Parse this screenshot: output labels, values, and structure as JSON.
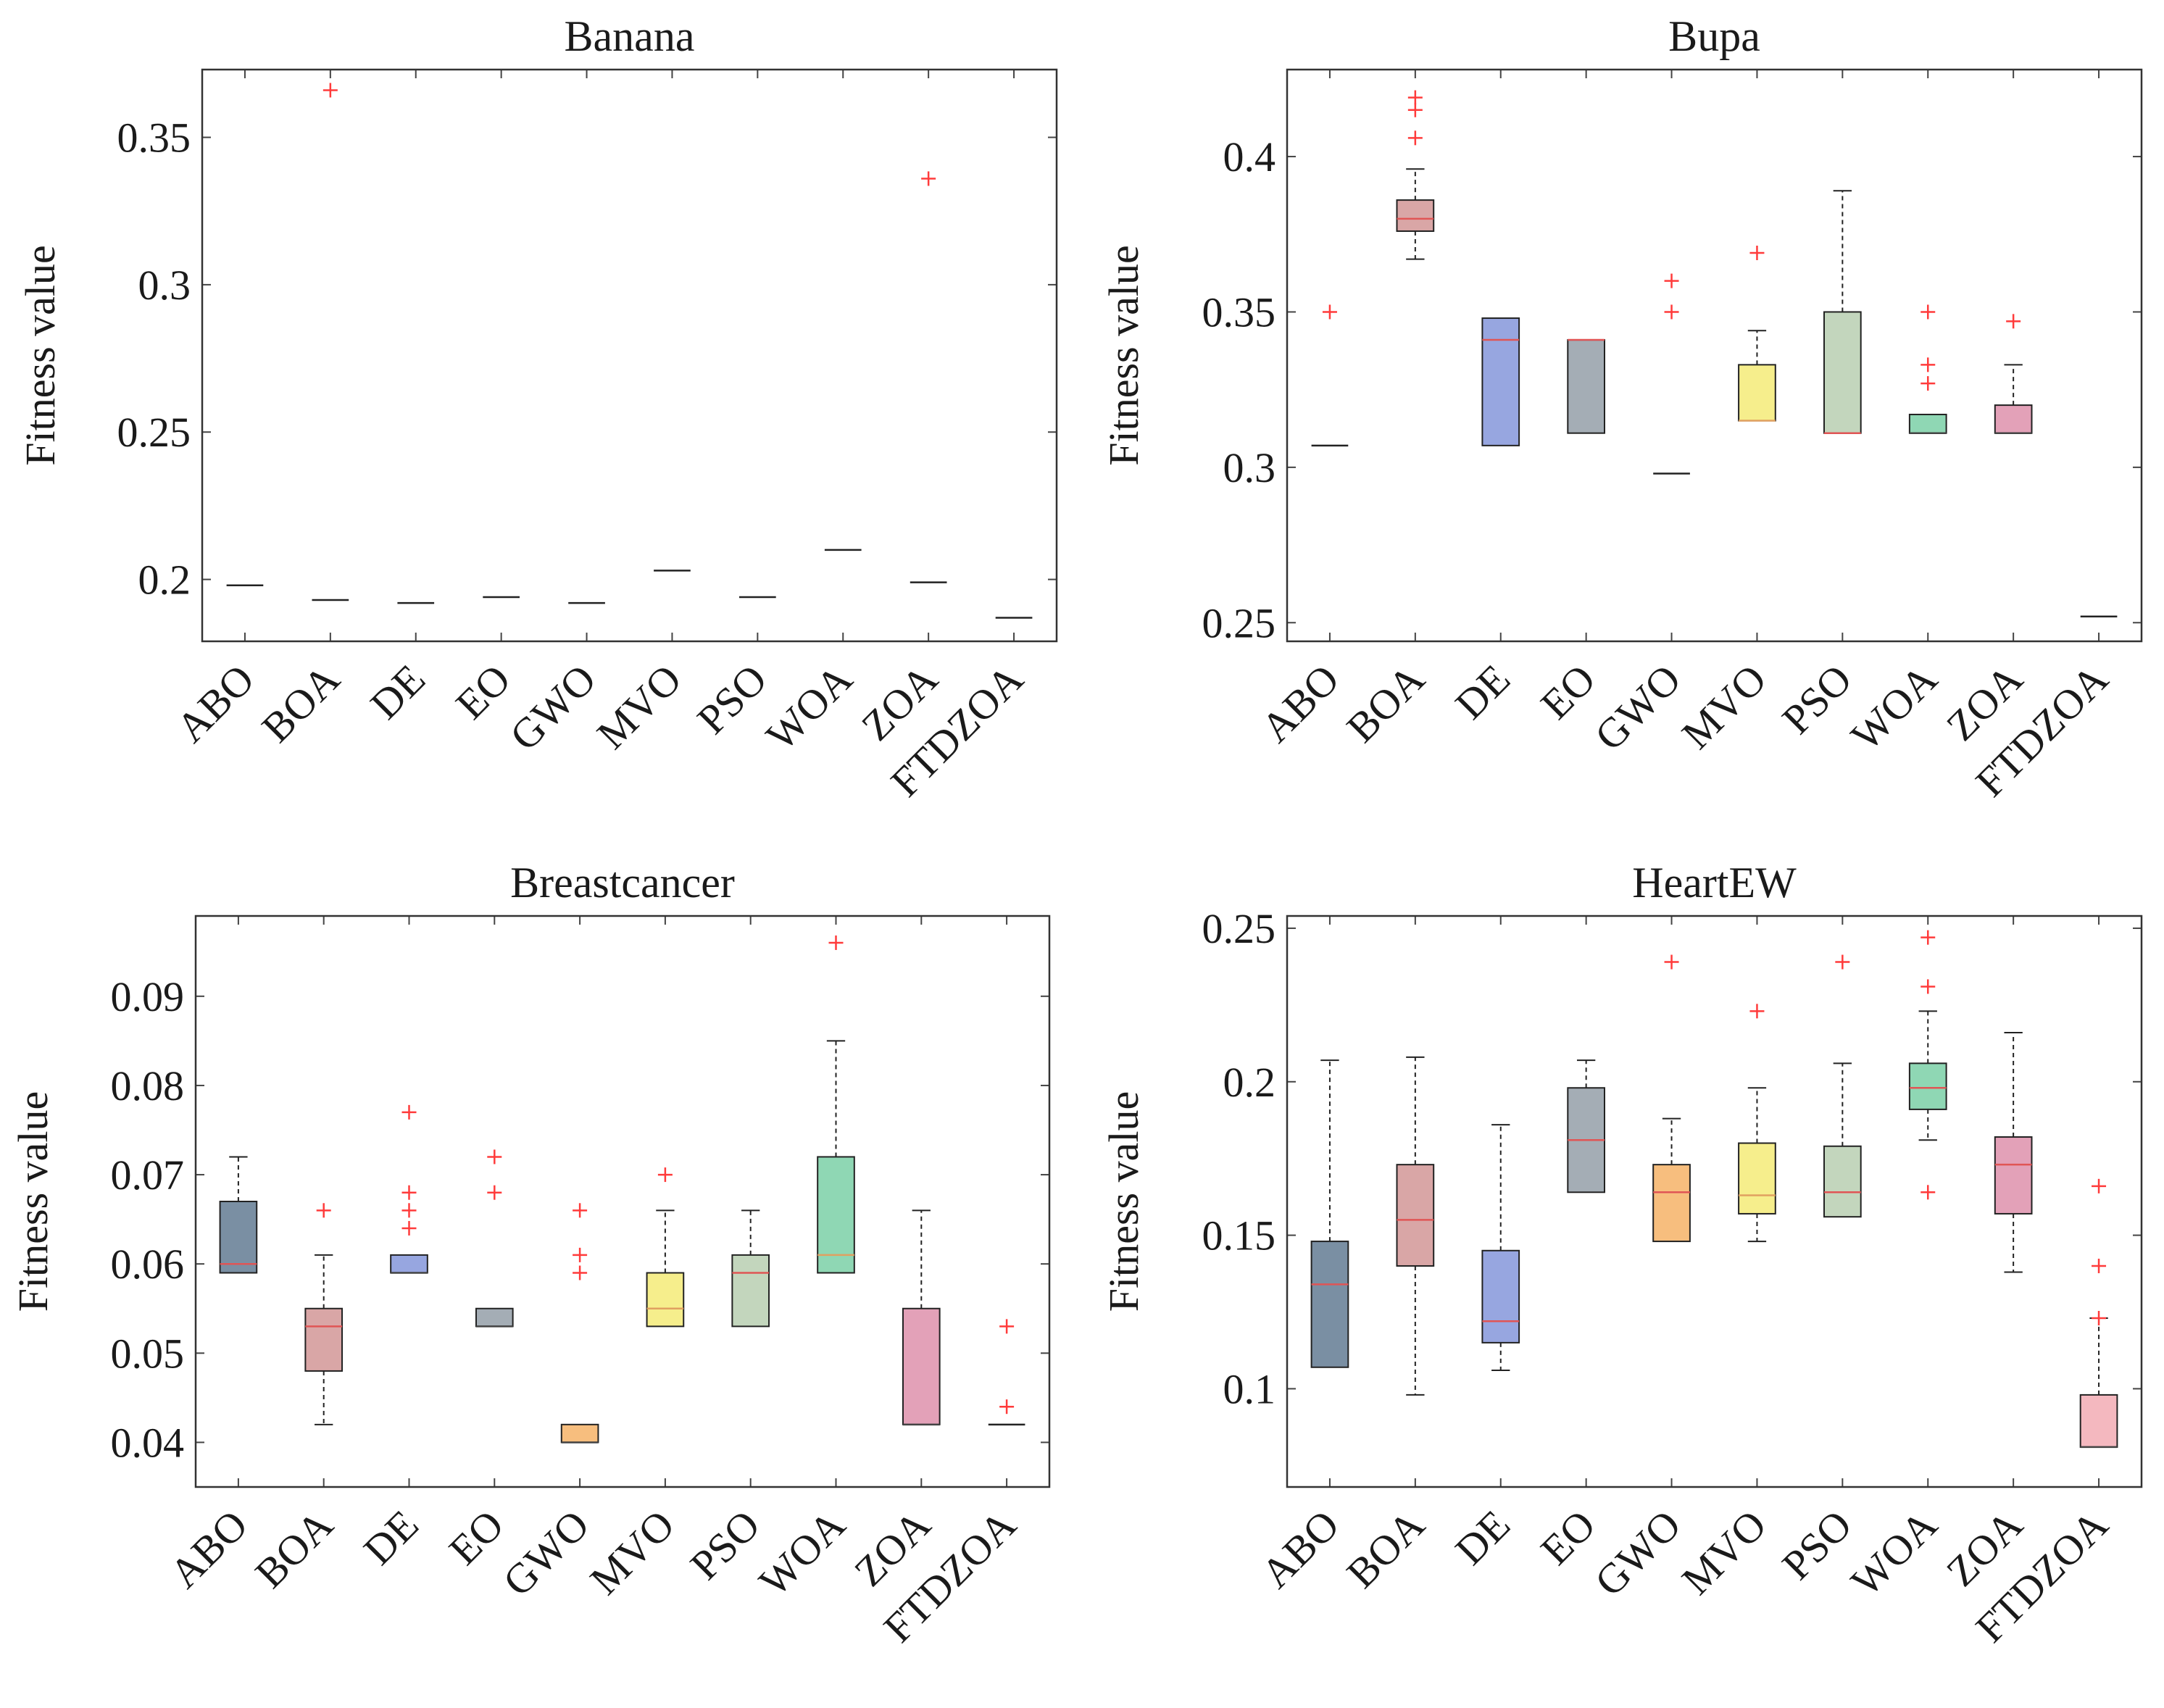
{
  "figure": {
    "ylabel": "Fitness value"
  },
  "chart_data": [
    {
      "type": "box",
      "title": "Banana",
      "ylabel": "Fitness value",
      "categories": [
        "ABO",
        "BOA",
        "DE",
        "EO",
        "GWO",
        "MVO",
        "PSO",
        "WOA",
        "ZOA",
        "FTDZOA"
      ],
      "ylim": [
        0.179,
        0.373
      ],
      "yticks": [
        0.2,
        0.25,
        0.3,
        0.35
      ],
      "ytick_labels": [
        "0.2",
        "0.25",
        "0.3",
        "0.35"
      ],
      "boxes": [
        {
          "category": "ABO",
          "q1": 0.198,
          "median": 0.198,
          "q3": 0.198,
          "whisker_low": 0.198,
          "whisker_high": 0.198,
          "outliers": [],
          "color": "#7a8fa3",
          "median_color": "#444444"
        },
        {
          "category": "BOA",
          "q1": 0.193,
          "median": 0.193,
          "q3": 0.193,
          "whisker_low": 0.193,
          "whisker_high": 0.193,
          "outliers": [
            0.366
          ],
          "color": "#d9a6a6",
          "median_color": "#444444"
        },
        {
          "category": "DE",
          "q1": 0.192,
          "median": 0.192,
          "q3": 0.192,
          "whisker_low": 0.192,
          "whisker_high": 0.192,
          "outliers": [],
          "color": "#97a6e0",
          "median_color": "#444444"
        },
        {
          "category": "EO",
          "q1": 0.194,
          "median": 0.194,
          "q3": 0.194,
          "whisker_low": 0.194,
          "whisker_high": 0.194,
          "outliers": [],
          "color": "#a4adb5",
          "median_color": "#444444"
        },
        {
          "category": "GWO",
          "q1": 0.192,
          "median": 0.192,
          "q3": 0.192,
          "whisker_low": 0.192,
          "whisker_high": 0.192,
          "outliers": [],
          "color": "#f7be7e",
          "median_color": "#444444"
        },
        {
          "category": "MVO",
          "q1": 0.203,
          "median": 0.203,
          "q3": 0.203,
          "whisker_low": 0.203,
          "whisker_high": 0.203,
          "outliers": [],
          "color": "#f6ee8c",
          "median_color": "#444444"
        },
        {
          "category": "PSO",
          "q1": 0.194,
          "median": 0.194,
          "q3": 0.194,
          "whisker_low": 0.194,
          "whisker_high": 0.194,
          "outliers": [],
          "color": "#c3d6bd",
          "median_color": "#444444"
        },
        {
          "category": "WOA",
          "q1": 0.21,
          "median": 0.21,
          "q3": 0.21,
          "whisker_low": 0.21,
          "whisker_high": 0.21,
          "outliers": [],
          "color": "#8fd7b4",
          "median_color": "#444444"
        },
        {
          "category": "ZOA",
          "q1": 0.199,
          "median": 0.199,
          "q3": 0.199,
          "whisker_low": 0.199,
          "whisker_high": 0.199,
          "outliers": [
            0.336
          ],
          "color": "#e3a1b8",
          "median_color": "#444444"
        },
        {
          "category": "FTDZOA",
          "q1": 0.187,
          "median": 0.187,
          "q3": 0.187,
          "whisker_low": 0.187,
          "whisker_high": 0.187,
          "outliers": [],
          "color": "#f4b8bf",
          "median_color": "#444444"
        }
      ]
    },
    {
      "type": "box",
      "title": "Bupa",
      "ylabel": "Fitness value",
      "categories": [
        "ABO",
        "BOA",
        "DE",
        "EO",
        "GWO",
        "MVO",
        "PSO",
        "WOA",
        "ZOA",
        "FTDZOA"
      ],
      "ylim": [
        0.244,
        0.428
      ],
      "yticks": [
        0.25,
        0.3,
        0.35,
        0.4
      ],
      "ytick_labels": [
        "0.25",
        "0.3",
        "0.35",
        "0.4"
      ],
      "boxes": [
        {
          "category": "ABO",
          "q1": 0.307,
          "median": 0.307,
          "q3": 0.307,
          "whisker_low": 0.307,
          "whisker_high": 0.307,
          "outliers": [
            0.35
          ],
          "color": "#7a8fa3",
          "median_color": "#444444"
        },
        {
          "category": "BOA",
          "q1": 0.376,
          "median": 0.38,
          "q3": 0.386,
          "whisker_low": 0.367,
          "whisker_high": 0.396,
          "outliers": [
            0.406,
            0.415,
            0.419
          ],
          "color": "#d9a6a6",
          "median_color": "#e05555"
        },
        {
          "category": "DE",
          "q1": 0.307,
          "median": 0.341,
          "q3": 0.348,
          "whisker_low": 0.307,
          "whisker_high": 0.348,
          "outliers": [],
          "color": "#97a6e0",
          "median_color": "#e05555"
        },
        {
          "category": "EO",
          "q1": 0.311,
          "median": 0.341,
          "q3": 0.341,
          "whisker_low": 0.311,
          "whisker_high": 0.341,
          "outliers": [],
          "color": "#a4adb5",
          "median_color": "#e05555"
        },
        {
          "category": "GWO",
          "q1": 0.298,
          "median": 0.298,
          "q3": 0.298,
          "whisker_low": 0.298,
          "whisker_high": 0.298,
          "outliers": [
            0.35,
            0.36
          ],
          "color": "#f7be7e",
          "median_color": "#444444"
        },
        {
          "category": "MVO",
          "q1": 0.315,
          "median": 0.315,
          "q3": 0.333,
          "whisker_low": 0.315,
          "whisker_high": 0.344,
          "outliers": [
            0.369
          ],
          "color": "#f6ee8c",
          "median_color": "#e0a060"
        },
        {
          "category": "PSO",
          "q1": 0.311,
          "median": 0.311,
          "q3": 0.35,
          "whisker_low": 0.311,
          "whisker_high": 0.389,
          "outliers": [],
          "color": "#c3d6bd",
          "median_color": "#e05555"
        },
        {
          "category": "WOA",
          "q1": 0.311,
          "median": 0.311,
          "q3": 0.317,
          "whisker_low": 0.311,
          "whisker_high": 0.317,
          "outliers": [
            0.327,
            0.333,
            0.35
          ],
          "color": "#8fd7b4",
          "median_color": "#444444"
        },
        {
          "category": "ZOA",
          "q1": 0.311,
          "median": 0.311,
          "q3": 0.32,
          "whisker_low": 0.311,
          "whisker_high": 0.333,
          "outliers": [
            0.347
          ],
          "color": "#e3a1b8",
          "median_color": "#444444"
        },
        {
          "category": "FTDZOA",
          "q1": 0.252,
          "median": 0.252,
          "q3": 0.252,
          "whisker_low": 0.252,
          "whisker_high": 0.252,
          "outliers": [],
          "color": "#f4b8bf",
          "median_color": "#444444"
        }
      ]
    },
    {
      "type": "box",
      "title": "Breastcancer",
      "ylabel": "Fitness value",
      "categories": [
        "ABO",
        "BOA",
        "DE",
        "EO",
        "GWO",
        "MVO",
        "PSO",
        "WOA",
        "ZOA",
        "FTDZOA"
      ],
      "ylim": [
        0.035,
        0.099
      ],
      "yticks": [
        0.04,
        0.05,
        0.06,
        0.07,
        0.08,
        0.09
      ],
      "ytick_labels": [
        "0.04",
        "0.05",
        "0.06",
        "0.07",
        "0.08",
        "0.09"
      ],
      "boxes": [
        {
          "category": "ABO",
          "q1": 0.059,
          "median": 0.06,
          "q3": 0.067,
          "whisker_low": 0.059,
          "whisker_high": 0.072,
          "outliers": [],
          "color": "#7a8fa3",
          "median_color": "#e05555"
        },
        {
          "category": "BOA",
          "q1": 0.048,
          "median": 0.053,
          "q3": 0.055,
          "whisker_low": 0.042,
          "whisker_high": 0.061,
          "outliers": [
            0.066
          ],
          "color": "#d9a6a6",
          "median_color": "#e05555"
        },
        {
          "category": "DE",
          "q1": 0.059,
          "median": 0.059,
          "q3": 0.061,
          "whisker_low": 0.059,
          "whisker_high": 0.061,
          "outliers": [
            0.064,
            0.066,
            0.068,
            0.077
          ],
          "color": "#97a6e0",
          "median_color": "#444444"
        },
        {
          "category": "EO",
          "q1": 0.053,
          "median": 0.053,
          "q3": 0.055,
          "whisker_low": 0.053,
          "whisker_high": 0.055,
          "outliers": [
            0.068,
            0.072
          ],
          "color": "#a4adb5",
          "median_color": "#444444"
        },
        {
          "category": "GWO",
          "q1": 0.04,
          "median": 0.04,
          "q3": 0.042,
          "whisker_low": 0.04,
          "whisker_high": 0.042,
          "outliers": [
            0.059,
            0.061,
            0.066
          ],
          "color": "#f7be7e",
          "median_color": "#444444"
        },
        {
          "category": "MVO",
          "q1": 0.053,
          "median": 0.055,
          "q3": 0.059,
          "whisker_low": 0.053,
          "whisker_high": 0.066,
          "outliers": [
            0.07
          ],
          "color": "#f6ee8c",
          "median_color": "#e0a060"
        },
        {
          "category": "PSO",
          "q1": 0.053,
          "median": 0.059,
          "q3": 0.061,
          "whisker_low": 0.053,
          "whisker_high": 0.066,
          "outliers": [],
          "color": "#c3d6bd",
          "median_color": "#e05555"
        },
        {
          "category": "WOA",
          "q1": 0.059,
          "median": 0.061,
          "q3": 0.072,
          "whisker_low": 0.059,
          "whisker_high": 0.085,
          "outliers": [
            0.096
          ],
          "color": "#8fd7b4",
          "median_color": "#e0a060"
        },
        {
          "category": "ZOA",
          "q1": 0.042,
          "median": 0.042,
          "q3": 0.055,
          "whisker_low": 0.042,
          "whisker_high": 0.066,
          "outliers": [],
          "color": "#e3a1b8",
          "median_color": "#444444"
        },
        {
          "category": "FTDZOA",
          "q1": 0.042,
          "median": 0.042,
          "q3": 0.042,
          "whisker_low": 0.042,
          "whisker_high": 0.042,
          "outliers": [
            0.044,
            0.053
          ],
          "color": "#f4b8bf",
          "median_color": "#444444"
        }
      ]
    },
    {
      "type": "box",
      "title": "HeartEW",
      "ylabel": "Fitness value",
      "categories": [
        "ABO",
        "BOA",
        "DE",
        "EO",
        "GWO",
        "MVO",
        "PSO",
        "WOA",
        "ZOA",
        "FTDZOA"
      ],
      "ylim": [
        0.068,
        0.254
      ],
      "yticks": [
        0.1,
        0.15,
        0.2,
        0.25
      ],
      "ytick_labels": [
        "0.1",
        "0.15",
        "0.2",
        "0.25"
      ],
      "boxes": [
        {
          "category": "ABO",
          "q1": 0.107,
          "median": 0.134,
          "q3": 0.148,
          "whisker_low": 0.107,
          "whisker_high": 0.207,
          "outliers": [],
          "color": "#7a8fa3",
          "median_color": "#e05555"
        },
        {
          "category": "BOA",
          "q1": 0.14,
          "median": 0.155,
          "q3": 0.173,
          "whisker_low": 0.098,
          "whisker_high": 0.208,
          "outliers": [],
          "color": "#d9a6a6",
          "median_color": "#e05555"
        },
        {
          "category": "DE",
          "q1": 0.115,
          "median": 0.122,
          "q3": 0.145,
          "whisker_low": 0.106,
          "whisker_high": 0.186,
          "outliers": [],
          "color": "#97a6e0",
          "median_color": "#e05555"
        },
        {
          "category": "EO",
          "q1": 0.164,
          "median": 0.181,
          "q3": 0.198,
          "whisker_low": 0.164,
          "whisker_high": 0.207,
          "outliers": [],
          "color": "#a4adb5",
          "median_color": "#e05555"
        },
        {
          "category": "GWO",
          "q1": 0.148,
          "median": 0.164,
          "q3": 0.173,
          "whisker_low": 0.148,
          "whisker_high": 0.188,
          "outliers": [
            0.239
          ],
          "color": "#f7be7e",
          "median_color": "#e05555"
        },
        {
          "category": "MVO",
          "q1": 0.157,
          "median": 0.163,
          "q3": 0.18,
          "whisker_low": 0.148,
          "whisker_high": 0.198,
          "outliers": [
            0.223
          ],
          "color": "#f6ee8c",
          "median_color": "#e0a060"
        },
        {
          "category": "PSO",
          "q1": 0.156,
          "median": 0.164,
          "q3": 0.179,
          "whisker_low": 0.156,
          "whisker_high": 0.206,
          "outliers": [
            0.239
          ],
          "color": "#c3d6bd",
          "median_color": "#e05555"
        },
        {
          "category": "WOA",
          "q1": 0.191,
          "median": 0.198,
          "q3": 0.206,
          "whisker_low": 0.181,
          "whisker_high": 0.223,
          "outliers": [
            0.164,
            0.231,
            0.247
          ],
          "color": "#8fd7b4",
          "median_color": "#e05555"
        },
        {
          "category": "ZOA",
          "q1": 0.157,
          "median": 0.173,
          "q3": 0.182,
          "whisker_low": 0.138,
          "whisker_high": 0.216,
          "outliers": [],
          "color": "#e3a1b8",
          "median_color": "#e05555"
        },
        {
          "category": "FTDZOA",
          "q1": 0.081,
          "median": 0.081,
          "q3": 0.098,
          "whisker_low": 0.081,
          "whisker_high": 0.123,
          "outliers": [
            0.123,
            0.14,
            0.166
          ],
          "color": "#f4b8bf",
          "median_color": "#444444"
        }
      ]
    }
  ]
}
